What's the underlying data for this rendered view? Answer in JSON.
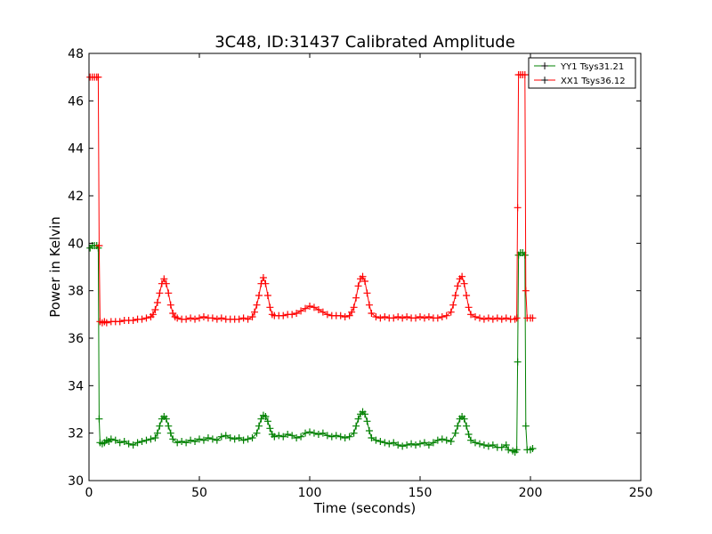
{
  "chart_data": {
    "type": "line",
    "title": "3C48, ID:31437 Calibrated Amplitude",
    "xlabel": "Time (seconds)",
    "ylabel": "Power in Kelvin",
    "xlim": [
      0,
      250
    ],
    "ylim": [
      30,
      48
    ],
    "xticks": [
      0,
      50,
      100,
      150,
      200,
      250
    ],
    "yticks": [
      30,
      32,
      34,
      36,
      38,
      40,
      42,
      44,
      46,
      48
    ],
    "grid": false,
    "legend_position": "top-right",
    "marker": "+",
    "series": [
      {
        "name": "YY1 Tsys31.21",
        "color": "#008000",
        "points": [
          [
            0.5,
            39.8
          ],
          [
            1.5,
            39.9
          ],
          [
            2.5,
            39.9
          ],
          [
            3.5,
            39.9
          ],
          [
            4.2,
            39.8
          ],
          [
            4.6,
            32.6
          ],
          [
            5.0,
            31.6
          ],
          [
            6,
            31.55
          ],
          [
            7,
            31.6
          ],
          [
            8,
            31.7
          ],
          [
            9,
            31.65
          ],
          [
            10,
            31.75
          ],
          [
            12,
            31.7
          ],
          [
            14,
            31.6
          ],
          [
            16,
            31.65
          ],
          [
            18,
            31.55
          ],
          [
            20,
            31.5
          ],
          [
            22,
            31.6
          ],
          [
            24,
            31.65
          ],
          [
            26,
            31.7
          ],
          [
            28,
            31.75
          ],
          [
            30,
            31.8
          ],
          [
            31,
            32.0
          ],
          [
            32,
            32.3
          ],
          [
            33,
            32.6
          ],
          [
            34,
            32.7
          ],
          [
            35,
            32.6
          ],
          [
            36,
            32.3
          ],
          [
            37,
            32.0
          ],
          [
            38,
            31.75
          ],
          [
            40,
            31.6
          ],
          [
            42,
            31.65
          ],
          [
            44,
            31.6
          ],
          [
            46,
            31.7
          ],
          [
            48,
            31.65
          ],
          [
            50,
            31.75
          ],
          [
            52,
            31.7
          ],
          [
            54,
            31.8
          ],
          [
            56,
            31.75
          ],
          [
            58,
            31.7
          ],
          [
            60,
            31.85
          ],
          [
            62,
            31.9
          ],
          [
            64,
            31.8
          ],
          [
            66,
            31.75
          ],
          [
            68,
            31.8
          ],
          [
            70,
            31.7
          ],
          [
            72,
            31.75
          ],
          [
            74,
            31.8
          ],
          [
            76,
            32.0
          ],
          [
            77,
            32.3
          ],
          [
            78,
            32.6
          ],
          [
            79,
            32.75
          ],
          [
            80,
            32.7
          ],
          [
            81,
            32.5
          ],
          [
            82,
            32.2
          ],
          [
            83,
            31.95
          ],
          [
            84,
            31.85
          ],
          [
            86,
            31.9
          ],
          [
            88,
            31.85
          ],
          [
            90,
            31.95
          ],
          [
            92,
            31.9
          ],
          [
            94,
            31.8
          ],
          [
            96,
            31.85
          ],
          [
            98,
            32.0
          ],
          [
            100,
            32.05
          ],
          [
            102,
            32.0
          ],
          [
            104,
            31.95
          ],
          [
            106,
            32.0
          ],
          [
            108,
            31.9
          ],
          [
            110,
            31.85
          ],
          [
            112,
            31.9
          ],
          [
            114,
            31.85
          ],
          [
            116,
            31.8
          ],
          [
            118,
            31.85
          ],
          [
            120,
            32.0
          ],
          [
            121,
            32.3
          ],
          [
            122,
            32.6
          ],
          [
            123,
            32.8
          ],
          [
            124,
            32.9
          ],
          [
            125,
            32.8
          ],
          [
            126,
            32.5
          ],
          [
            127,
            32.1
          ],
          [
            128,
            31.8
          ],
          [
            130,
            31.7
          ],
          [
            132,
            31.65
          ],
          [
            134,
            31.6
          ],
          [
            136,
            31.55
          ],
          [
            138,
            31.6
          ],
          [
            140,
            31.5
          ],
          [
            142,
            31.45
          ],
          [
            144,
            31.5
          ],
          [
            146,
            31.55
          ],
          [
            148,
            31.5
          ],
          [
            150,
            31.55
          ],
          [
            152,
            31.6
          ],
          [
            154,
            31.5
          ],
          [
            156,
            31.6
          ],
          [
            158,
            31.7
          ],
          [
            160,
            31.75
          ],
          [
            162,
            31.7
          ],
          [
            164,
            31.65
          ],
          [
            166,
            32.0
          ],
          [
            167,
            32.3
          ],
          [
            168,
            32.6
          ],
          [
            169,
            32.7
          ],
          [
            170,
            32.6
          ],
          [
            171,
            32.3
          ],
          [
            172,
            31.95
          ],
          [
            173,
            31.7
          ],
          [
            175,
            31.6
          ],
          [
            177,
            31.55
          ],
          [
            179,
            31.5
          ],
          [
            181,
            31.45
          ],
          [
            183,
            31.5
          ],
          [
            185,
            31.4
          ],
          [
            187,
            31.4
          ],
          [
            189,
            31.5
          ],
          [
            190,
            31.3
          ],
          [
            192,
            31.25
          ],
          [
            193,
            31.2
          ],
          [
            193.8,
            31.3
          ],
          [
            194.2,
            35.0
          ],
          [
            194.6,
            39.5
          ],
          [
            195.5,
            39.6
          ],
          [
            196.5,
            39.6
          ],
          [
            197.5,
            39.5
          ],
          [
            197.9,
            32.3
          ],
          [
            198.5,
            31.3
          ],
          [
            200,
            31.3
          ],
          [
            201,
            31.35
          ]
        ]
      },
      {
        "name": "XX1 Tsys36.12",
        "color": "#ff0000",
        "points": [
          [
            0.5,
            47.0
          ],
          [
            1.5,
            47.0
          ],
          [
            2.5,
            47.0
          ],
          [
            3.5,
            47.0
          ],
          [
            4.2,
            47.0
          ],
          [
            4.6,
            39.9
          ],
          [
            5.0,
            36.7
          ],
          [
            6,
            36.65
          ],
          [
            7,
            36.7
          ],
          [
            8,
            36.65
          ],
          [
            10,
            36.7
          ],
          [
            12,
            36.7
          ],
          [
            14,
            36.7
          ],
          [
            16,
            36.75
          ],
          [
            18,
            36.75
          ],
          [
            20,
            36.75
          ],
          [
            22,
            36.8
          ],
          [
            24,
            36.8
          ],
          [
            26,
            36.85
          ],
          [
            28,
            36.9
          ],
          [
            29,
            37.0
          ],
          [
            30,
            37.2
          ],
          [
            31,
            37.5
          ],
          [
            32,
            37.9
          ],
          [
            33,
            38.3
          ],
          [
            34,
            38.5
          ],
          [
            35,
            38.3
          ],
          [
            36,
            37.9
          ],
          [
            37,
            37.4
          ],
          [
            38,
            37.05
          ],
          [
            39,
            36.9
          ],
          [
            40,
            36.85
          ],
          [
            42,
            36.8
          ],
          [
            44,
            36.8
          ],
          [
            46,
            36.85
          ],
          [
            48,
            36.8
          ],
          [
            50,
            36.85
          ],
          [
            52,
            36.9
          ],
          [
            54,
            36.85
          ],
          [
            56,
            36.85
          ],
          [
            58,
            36.8
          ],
          [
            60,
            36.85
          ],
          [
            62,
            36.8
          ],
          [
            64,
            36.8
          ],
          [
            66,
            36.8
          ],
          [
            68,
            36.8
          ],
          [
            70,
            36.85
          ],
          [
            72,
            36.8
          ],
          [
            74,
            36.9
          ],
          [
            75,
            37.1
          ],
          [
            76,
            37.4
          ],
          [
            77,
            37.8
          ],
          [
            78,
            38.3
          ],
          [
            79,
            38.55
          ],
          [
            80,
            38.3
          ],
          [
            81,
            37.8
          ],
          [
            82,
            37.3
          ],
          [
            83,
            37.0
          ],
          [
            84,
            36.95
          ],
          [
            86,
            36.95
          ],
          [
            88,
            36.95
          ],
          [
            90,
            37.0
          ],
          [
            92,
            37.0
          ],
          [
            94,
            37.05
          ],
          [
            96,
            37.15
          ],
          [
            98,
            37.25
          ],
          [
            100,
            37.35
          ],
          [
            102,
            37.3
          ],
          [
            104,
            37.2
          ],
          [
            106,
            37.1
          ],
          [
            108,
            37.0
          ],
          [
            110,
            36.95
          ],
          [
            112,
            36.95
          ],
          [
            114,
            36.95
          ],
          [
            116,
            36.9
          ],
          [
            118,
            36.95
          ],
          [
            119,
            37.1
          ],
          [
            120,
            37.3
          ],
          [
            121,
            37.7
          ],
          [
            122,
            38.2
          ],
          [
            123,
            38.5
          ],
          [
            124,
            38.6
          ],
          [
            125,
            38.4
          ],
          [
            126,
            37.9
          ],
          [
            127,
            37.4
          ],
          [
            128,
            37.05
          ],
          [
            130,
            36.9
          ],
          [
            132,
            36.85
          ],
          [
            134,
            36.9
          ],
          [
            136,
            36.85
          ],
          [
            138,
            36.85
          ],
          [
            140,
            36.9
          ],
          [
            142,
            36.85
          ],
          [
            144,
            36.9
          ],
          [
            146,
            36.85
          ],
          [
            148,
            36.85
          ],
          [
            150,
            36.9
          ],
          [
            152,
            36.85
          ],
          [
            154,
            36.9
          ],
          [
            156,
            36.85
          ],
          [
            158,
            36.85
          ],
          [
            160,
            36.9
          ],
          [
            162,
            36.95
          ],
          [
            164,
            37.1
          ],
          [
            165,
            37.4
          ],
          [
            166,
            37.8
          ],
          [
            167,
            38.2
          ],
          [
            168,
            38.5
          ],
          [
            169,
            38.6
          ],
          [
            170,
            38.3
          ],
          [
            171,
            37.8
          ],
          [
            172,
            37.3
          ],
          [
            173,
            37.0
          ],
          [
            175,
            36.9
          ],
          [
            177,
            36.85
          ],
          [
            179,
            36.8
          ],
          [
            181,
            36.85
          ],
          [
            183,
            36.8
          ],
          [
            185,
            36.85
          ],
          [
            187,
            36.8
          ],
          [
            189,
            36.85
          ],
          [
            191,
            36.8
          ],
          [
            193,
            36.8
          ],
          [
            193.8,
            36.85
          ],
          [
            194.2,
            41.5
          ],
          [
            194.6,
            47.1
          ],
          [
            195.5,
            47.1
          ],
          [
            196.5,
            47.1
          ],
          [
            197.5,
            47.1
          ],
          [
            197.9,
            38.0
          ],
          [
            198.5,
            36.85
          ],
          [
            200,
            36.85
          ],
          [
            201,
            36.85
          ]
        ]
      }
    ]
  }
}
